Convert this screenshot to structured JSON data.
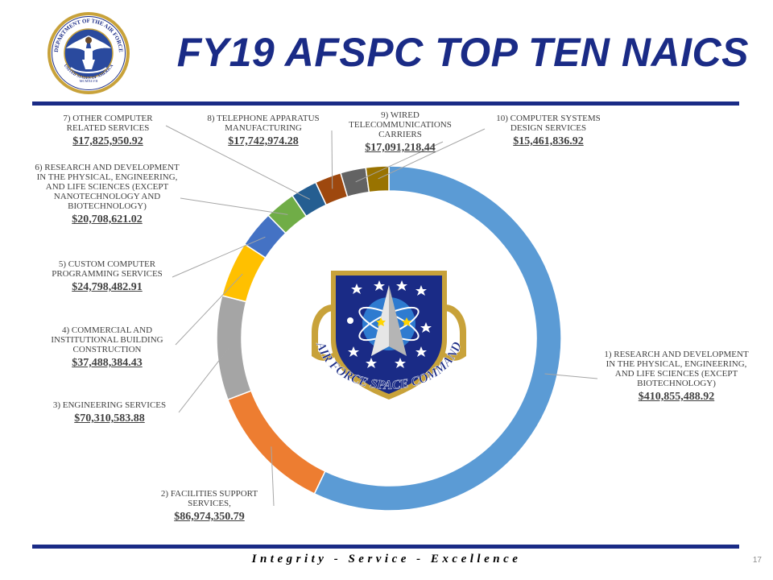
{
  "title": "FY19 AFSPC TOP TEN NAICS",
  "footer": "Integrity - Service - Excellence",
  "page_number": "17",
  "seal": {
    "top_text": "DEPARTMENT OF THE AIR FORCE",
    "bottom_text": "UNITED STATES OF AMERICA",
    "year": "MCMXLVII"
  },
  "emblem_text": "AIR FORCE SPACE COMMAND",
  "colors": {
    "title": "#1a2b86",
    "rule": "#1a2b86",
    "slices": [
      "#5b9bd5",
      "#ed7d31",
      "#a5a5a5",
      "#ffc000",
      "#4472c4",
      "#70ad47",
      "#255e91",
      "#9e480e",
      "#636363",
      "#997300"
    ]
  },
  "labels": [
    {
      "name": "1) RESEARCH AND DEVELOPMENT IN THE PHYSICAL, ENGINEERING, AND LIFE SCIENCES (EXCEPT BIOTECHNOLOGY)",
      "amount": "$410,855,488.92"
    },
    {
      "name": "2) FACILITIES SUPPORT SERVICES,",
      "amount": "$86,974,350.79"
    },
    {
      "name": "3) ENGINEERING SERVICES",
      "amount": "$70,310,583.88"
    },
    {
      "name": "4) COMMERCIAL AND INSTITUTIONAL BUILDING CONSTRUCTION",
      "amount": "$37,488,384.43"
    },
    {
      "name": "5) CUSTOM COMPUTER PROGRAMMING SERVICES",
      "amount": "$24,798,482.91"
    },
    {
      "name": "6) RESEARCH AND DEVELOPMENT IN THE PHYSICAL, ENGINEERING, AND LIFE SCIENCES (EXCEPT NANOTECHNOLOGY AND BIOTECHNOLOGY)",
      "amount": "$20,708,621.02"
    },
    {
      "name": "7) OTHER COMPUTER RELATED SERVICES",
      "amount": "$17,825,950.92"
    },
    {
      "name": "8) TELEPHONE APPARATUS MANUFACTURING",
      "amount": "$17,742,974.28"
    },
    {
      "name": "9) WIRED TELECOMMUNICATIONS CARRIERS",
      "amount": "$17,091,218.44"
    },
    {
      "name": "10) COMPUTER SYSTEMS DESIGN SERVICES",
      "amount": "$15,461,836.92"
    }
  ],
  "chart_data": {
    "type": "pie",
    "style": "donut",
    "title": "FY19 AFSPC TOP TEN NAICS",
    "categories": [
      "1) RESEARCH AND DEVELOPMENT IN THE PHYSICAL, ENGINEERING, AND LIFE SCIENCES (EXCEPT BIOTECHNOLOGY)",
      "2) FACILITIES SUPPORT SERVICES,",
      "3) ENGINEERING SERVICES",
      "4) COMMERCIAL AND INSTITUTIONAL BUILDING CONSTRUCTION",
      "5) CUSTOM COMPUTER PROGRAMMING SERVICES",
      "6) RESEARCH AND DEVELOPMENT IN THE PHYSICAL, ENGINEERING, AND LIFE SCIENCES (EXCEPT NANOTECHNOLOGY AND BIOTECHNOLOGY)",
      "7) OTHER COMPUTER RELATED SERVICES",
      "8) TELEPHONE APPARATUS MANUFACTURING",
      "9) WIRED TELECOMMUNICATIONS CARRIERS",
      "10) COMPUTER SYSTEMS DESIGN SERVICES"
    ],
    "values": [
      410855488.92,
      86974350.79,
      70310583.88,
      37488384.43,
      24798482.91,
      20708621.02,
      17825950.92,
      17742974.28,
      17091218.44,
      15461836.92
    ],
    "legend": "none"
  }
}
